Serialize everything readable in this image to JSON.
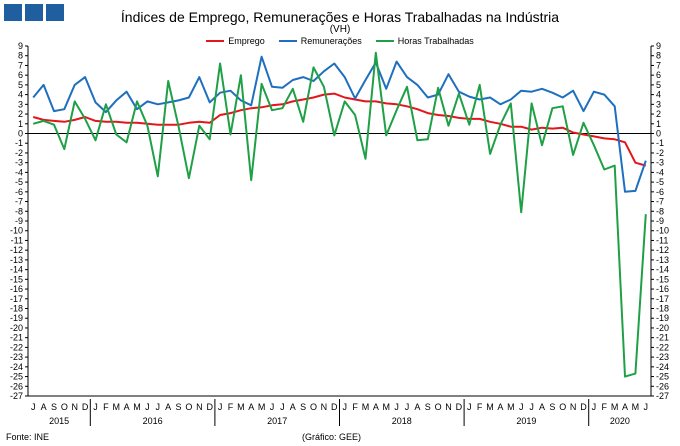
{
  "header": {
    "title": "Índices de Emprego, Remunerações e Horas Trabalhadas na Indústria",
    "unit": "(VH)"
  },
  "footer": {
    "source": "Fonte: INE",
    "credit": "(Gráfico: GEE)"
  },
  "colors": {
    "logo": "#1f5f9f",
    "emprego": "#e3161b",
    "remuneracoes": "#1f6fbf",
    "horas": "#1fa046",
    "axis": "#000000"
  },
  "chart_data": {
    "type": "line",
    "title": "Índices de Emprego, Remunerações e Horas Trabalhadas na Indústria",
    "ylabel": "(VH)",
    "ylim": [
      -27,
      9
    ],
    "yticks": [
      9,
      8,
      7,
      6,
      5,
      4,
      3,
      2,
      1,
      0,
      -1,
      -2,
      -3,
      -4,
      -5,
      -6,
      -7,
      -8,
      -9,
      -10,
      -11,
      -12,
      -13,
      -14,
      -15,
      -16,
      -17,
      -18,
      -19,
      -20,
      -21,
      -22,
      -23,
      -24,
      -25,
      -26,
      -27
    ],
    "grid": false,
    "legend_position": "top-center",
    "x": [
      "J",
      "A",
      "S",
      "O",
      "N",
      "D",
      "J",
      "F",
      "M",
      "A",
      "M",
      "J",
      "J",
      "A",
      "S",
      "O",
      "N",
      "D",
      "J",
      "F",
      "M",
      "A",
      "M",
      "J",
      "J",
      "A",
      "S",
      "O",
      "N",
      "D",
      "J",
      "F",
      "M",
      "A",
      "M",
      "J",
      "J",
      "A",
      "S",
      "O",
      "N",
      "D",
      "J",
      "F",
      "M",
      "A",
      "M",
      "J",
      "J",
      "A",
      "S",
      "O",
      "N",
      "D",
      "J",
      "F",
      "M",
      "A",
      "M",
      "J"
    ],
    "years": [
      {
        "label": "2015",
        "start": 0,
        "end": 5
      },
      {
        "label": "2016",
        "start": 6,
        "end": 17
      },
      {
        "label": "2017",
        "start": 18,
        "end": 29
      },
      {
        "label": "2018",
        "start": 30,
        "end": 41
      },
      {
        "label": "2019",
        "start": 42,
        "end": 53
      },
      {
        "label": "2020",
        "start": 54,
        "end": 59
      }
    ],
    "series": [
      {
        "name": "Emprego",
        "color": "#e3161b",
        "values": [
          1.7,
          1.4,
          1.3,
          1.2,
          1.4,
          1.7,
          1.3,
          1.2,
          1.2,
          1.1,
          1.1,
          1.0,
          0.9,
          0.9,
          0.9,
          1.1,
          1.2,
          1.1,
          1.9,
          2.1,
          2.4,
          2.6,
          2.7,
          2.9,
          3.0,
          3.3,
          3.5,
          3.7,
          4.0,
          4.1,
          3.7,
          3.5,
          3.3,
          3.3,
          3.1,
          3.0,
          2.8,
          2.5,
          2.1,
          1.9,
          1.8,
          1.6,
          1.5,
          1.5,
          1.2,
          1.0,
          0.7,
          0.7,
          0.4,
          0.6,
          0.5,
          0.6,
          0.1,
          -0.1,
          -0.3,
          -0.5,
          -0.6,
          -0.9,
          -3.0,
          -3.3
        ]
      },
      {
        "name": "Remunerações",
        "color": "#1f6fbf",
        "values": [
          3.7,
          5.0,
          2.3,
          2.5,
          5.0,
          5.8,
          3.2,
          2.2,
          3.4,
          4.3,
          2.5,
          3.3,
          3.0,
          3.2,
          3.4,
          3.7,
          5.8,
          3.2,
          4.2,
          4.4,
          3.4,
          2.9,
          7.9,
          4.8,
          4.7,
          5.5,
          5.8,
          5.4,
          6.4,
          7.2,
          5.8,
          3.6,
          5.5,
          7.3,
          4.6,
          7.4,
          5.8,
          5.0,
          3.7,
          4.0,
          6.1,
          4.3,
          3.8,
          3.5,
          3.7,
          3.0,
          3.5,
          4.4,
          4.3,
          4.6,
          4.2,
          3.7,
          4.4,
          2.3,
          4.3,
          4.0,
          2.8,
          -6.0,
          -5.9,
          -2.8
        ]
      },
      {
        "name": "Horas Trabalhadas",
        "color": "#1fa046",
        "values": [
          1.0,
          1.3,
          0.9,
          -1.6,
          3.3,
          1.5,
          -0.7,
          3.0,
          -0.1,
          -0.9,
          3.3,
          0.8,
          -4.4,
          5.4,
          0.7,
          -4.6,
          0.8,
          -0.6,
          7.2,
          -0.1,
          6.0,
          -4.8,
          5.1,
          2.4,
          2.6,
          4.6,
          1.2,
          6.8,
          4.8,
          -0.2,
          3.3,
          1.9,
          -2.6,
          8.3,
          -0.2,
          2.4,
          4.8,
          -0.7,
          -0.6,
          4.7,
          0.8,
          4.1,
          0.9,
          5.0,
          -2.1,
          0.9,
          3.1,
          -8.1,
          3.1,
          -1.2,
          2.6,
          2.8,
          -2.2,
          1.1,
          -1.2,
          -3.7,
          -3.3,
          -25.0,
          -24.7,
          -8.3
        ]
      }
    ]
  }
}
